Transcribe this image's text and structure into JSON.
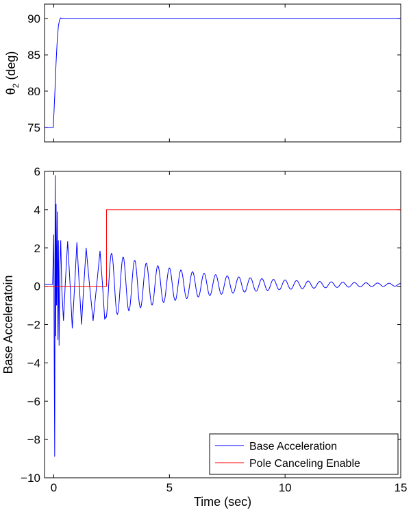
{
  "chart_data": [
    {
      "type": "line",
      "title": "",
      "xlabel": "",
      "ylabel_main": "θ",
      "ylabel_sub": "2",
      "ylabel_unit": " (deg)",
      "xlim": [
        -0.4,
        15
      ],
      "ylim": [
        73,
        92
      ],
      "xticks": [
        0,
        5,
        10,
        15
      ],
      "yticks": [
        75,
        80,
        85,
        90
      ],
      "ytick_labels": [
        "75",
        "80",
        "85",
        "90"
      ],
      "series": [
        {
          "color": "#0000ff",
          "x": [
            -0.4,
            -0.02,
            0.0,
            0.05,
            0.1,
            0.15,
            0.2,
            0.25,
            0.3,
            0.35,
            0.4,
            0.6,
            1.0,
            2.0,
            4.0,
            15.0
          ],
          "y": [
            75.0,
            75.0,
            76.5,
            80.0,
            84.0,
            87.0,
            89.0,
            89.8,
            90.1,
            90.0,
            90.05,
            90.0,
            90.0,
            90.0,
            90.0,
            90.0
          ]
        }
      ]
    },
    {
      "type": "line",
      "title": "",
      "xlabel": "Time (sec)",
      "ylabel": "Base Acceleratoin",
      "xlim": [
        -0.4,
        15
      ],
      "ylim": [
        -10,
        6
      ],
      "xticks": [
        0,
        5,
        10,
        15
      ],
      "xtick_labels": [
        "0",
        "5",
        "10",
        "15"
      ],
      "yticks": [
        -10,
        -8,
        -6,
        -4,
        -2,
        0,
        2,
        4,
        6
      ],
      "ytick_labels": [
        "−10",
        "−8",
        "−6",
        "−4",
        "−2",
        "0",
        "2",
        "4",
        "6"
      ],
      "legend": "bottom-right",
      "series": [
        {
          "name": "Base Acceleration",
          "color": "#0000ff",
          "x": [
            -0.4,
            -0.05,
            0.0,
            0.02,
            0.04,
            0.06,
            0.08,
            0.1,
            0.12,
            0.15,
            0.18,
            0.2,
            0.23,
            0.26,
            0.3,
            0.35,
            0.42,
            0.5,
            0.6,
            0.7,
            0.8,
            0.9,
            1.0,
            1.1,
            1.2,
            1.3,
            1.4,
            1.55,
            1.7,
            1.85,
            2.0,
            2.1,
            2.2,
            2.25
          ],
          "y": [
            0.1,
            0.1,
            2.7,
            -4.2,
            -8.9,
            5.8,
            -2.6,
            4.3,
            -1.0,
            3.9,
            -2.8,
            2.4,
            -3.1,
            0.6,
            2.4,
            -0.2,
            -1.8,
            0.2,
            2.35,
            0.2,
            -2.2,
            0.0,
            2.3,
            0.1,
            -2.0,
            0.1,
            2.0,
            0.0,
            -1.8,
            0.0,
            1.85,
            0.2,
            -1.7,
            -1.6
          ],
          "decay": {
            "x_start": 2.25,
            "x_end": 15.0,
            "amplitude_start": 1.75,
            "amplitude_end": 0.07,
            "period": 0.5,
            "offset": 0.08
          }
        },
        {
          "name": "Pole Canceling Enable",
          "color": "#ff0000",
          "x": [
            -0.4,
            2.28,
            2.28,
            15.0
          ],
          "y": [
            0.0,
            0.0,
            4.0,
            4.0
          ]
        }
      ]
    }
  ]
}
